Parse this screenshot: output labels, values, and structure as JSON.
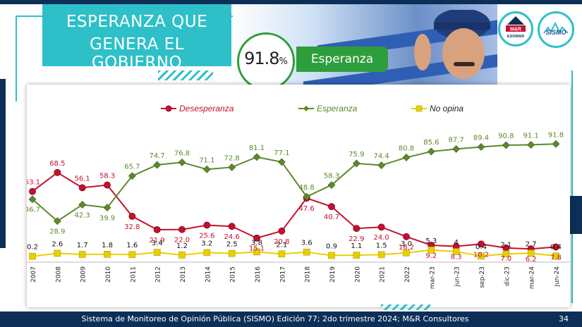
{
  "slide": {
    "title_line1": "ESPERANZA QUE",
    "title_line2": "GENERA EL GOBIERNO",
    "highlight_value": "91.8",
    "highlight_unit": "%",
    "highlight_label": "Esperanza",
    "footer_source": "Sistema de Monitoreo de Opinión Pública (SISMO) Edición 77; 2do trimestre 2024; M&R Consultores",
    "page_number": "34",
    "logo_mr_text": "M&R",
    "logo_mr_subtext": "ESOMAR",
    "logo_sismo_text": "SISMO"
  },
  "colors": {
    "teal": "#2ec0c8",
    "navy": "#0d2f57",
    "green_badge": "#2e9e3c",
    "desesperanza": "#c8102e",
    "esperanza": "#5b8a2a",
    "no_opina": "#e8d000"
  },
  "chart_data": {
    "type": "line",
    "title": "",
    "xlabel": "",
    "ylabel": "",
    "categories": [
      "2007",
      "2008",
      "2009",
      "2010",
      "2011",
      "2012",
      "2013",
      "2014",
      "2015",
      "2016",
      "2017",
      "2018",
      "2019",
      "2020",
      "2021",
      "2022",
      "mar-23",
      "jun-23",
      "sep-23",
      "dic-23",
      "mar-24",
      "jun-24"
    ],
    "ylim": [
      0,
      100
    ],
    "legend_position": "top",
    "series": [
      {
        "name": "Desesperanza",
        "values": [
          53.1,
          68.5,
          56.1,
          58.3,
          32.8,
          21.9,
          22.0,
          25.6,
          24.6,
          15.1,
          20.8,
          47.6,
          40.7,
          22.9,
          24.0,
          16.2,
          9.2,
          8.3,
          10.2,
          7.0,
          6.2,
          7.8
        ]
      },
      {
        "name": "Esperanza",
        "values": [
          46.7,
          28.9,
          42.3,
          39.9,
          65.7,
          74.7,
          76.8,
          71.1,
          72.8,
          81.1,
          77.1,
          48.8,
          58.3,
          75.9,
          74.4,
          80.8,
          85.6,
          87.7,
          89.4,
          90.8,
          91.1,
          91.8
        ]
      },
      {
        "name": "No opina",
        "values": [
          0.2,
          2.6,
          1.7,
          1.8,
          1.6,
          3.4,
          1.2,
          3.2,
          2.5,
          3.8,
          2.1,
          3.6,
          0.9,
          1.1,
          1.5,
          3.0,
          5.3,
          4.0,
          0.4,
          2.1,
          2.7,
          0.4
        ]
      }
    ],
    "labels": {
      "Desesperanza": [
        "53.1",
        "68.5",
        "56.1",
        "58.3",
        "32.8",
        "21.9",
        "22.0",
        "25.6",
        "24.6",
        "15.1",
        "20.8",
        "47.6",
        "40.7",
        "22.9",
        "24.0",
        "16.2",
        "9.2",
        "8.3",
        "10.2",
        "7.0",
        "6.2",
        "7.8"
      ],
      "Esperanza": [
        "46.7",
        "28.9",
        "42.3",
        "39.9",
        "65.7",
        "74.7",
        "76.8",
        "71.1",
        "72.8",
        "81.1",
        "77.1",
        "48.8",
        "58.3",
        "75.9",
        "74.4",
        "80.8",
        "85.6",
        "87.7",
        "89.4",
        "90.8",
        "91.1",
        "91.8"
      ],
      "No opina": [
        "0.2",
        "2.6",
        "1.7",
        "1.8",
        "1.6",
        "3.4",
        "1.2",
        "3.2",
        "2.5",
        "3.8",
        "2.1",
        "3.6",
        "0.9",
        "1.1",
        "1.5",
        "3.0",
        "5.3",
        "4",
        "0.4",
        "2.1",
        "2.7",
        "0.4"
      ]
    }
  }
}
